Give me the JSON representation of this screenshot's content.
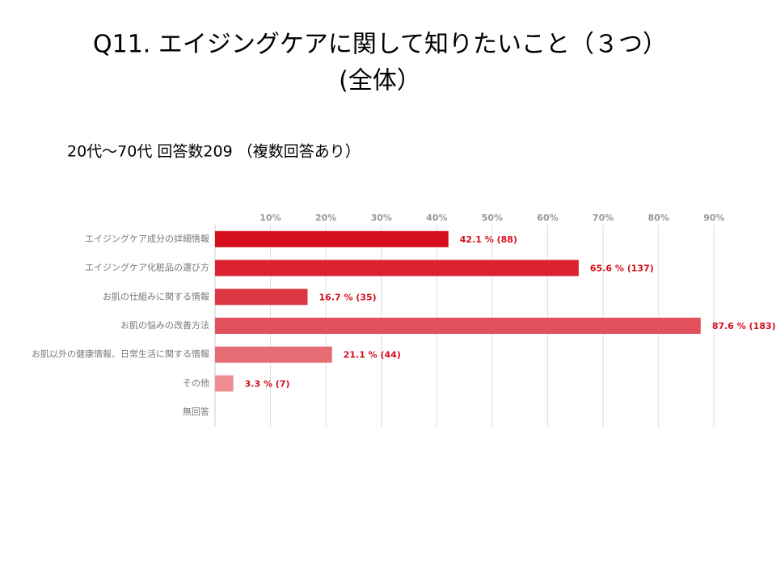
{
  "chart_data": {
    "type": "bar",
    "title": [
      "Q11. エイジングケアに関して知りたいこと（３つ）",
      "(全体）"
    ],
    "subtitle": "20代～70代  回答数209 （複数回答あり）",
    "categories": [
      "エイジングケア成分の詳細情報",
      "エイジングケア化粧品の選び方",
      "お肌の仕組みに関する情報",
      "お肌の悩みの改善方法",
      "お肌以外の健康情報、日常生活に関する情報",
      "その他",
      "無回答"
    ],
    "values": [
      42.1,
      65.6,
      16.7,
      87.6,
      21.1,
      3.3,
      0
    ],
    "value_labels": [
      "42.1 % (88)",
      "65.6 % (137)",
      "16.7 % (35)",
      "87.6 % (183)",
      "21.1 % (44)",
      "3.3 % (7)",
      null
    ],
    "colors": [
      "#d50f1d",
      "#da2232",
      "#de3744",
      "#e2515b",
      "#e76d75",
      "#ee8d93",
      "#f2a8ac"
    ],
    "xlim": [
      0,
      92
    ],
    "xticks": [
      {
        "value": 10,
        "label": "10%"
      },
      {
        "value": 20,
        "label": "20%"
      },
      {
        "value": 30,
        "label": "30%"
      },
      {
        "value": 40,
        "label": "40%"
      },
      {
        "value": 50,
        "label": "50%"
      },
      {
        "value": 60,
        "label": "60%"
      },
      {
        "value": 70,
        "label": "70%"
      },
      {
        "value": 80,
        "label": "80%"
      },
      {
        "value": 90,
        "label": "90%"
      }
    ],
    "grid": true
  }
}
